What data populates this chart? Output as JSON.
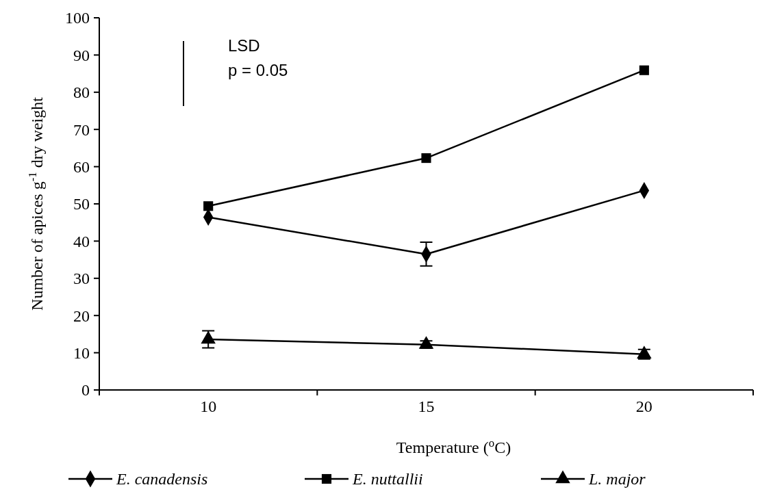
{
  "chart_data": {
    "type": "line",
    "xlabel": "Temperature ($^{o}$C)",
    "ylabel": "Number of apices g$^{-1}$ dry weight",
    "categories": [
      "10",
      "15",
      "20"
    ],
    "ylim": [
      0,
      100
    ],
    "yticks": [
      0,
      10,
      20,
      30,
      40,
      50,
      60,
      70,
      80,
      90,
      100
    ],
    "grid": false,
    "legend": "bottom",
    "line_style": "solid",
    "annotations": [
      "LSD",
      "p = 0.05"
    ],
    "series": [
      {
        "name": "E. canadensis",
        "color": "#000000",
        "marker": "diamond",
        "values": [
          46.4,
          36.5,
          53.6
        ],
        "errors": [
          null,
          3.2,
          null
        ]
      },
      {
        "name": "E. nuttallii",
        "color": "#000000",
        "marker": "square",
        "values": [
          49.4,
          62.3,
          85.9
        ],
        "errors": [
          null,
          null,
          null
        ]
      },
      {
        "name": "L. major",
        "color": "#000000",
        "marker": "triangle",
        "values": [
          13.6,
          12.2,
          9.6
        ],
        "errors": [
          2.3,
          1,
          1.3
        ]
      }
    ]
  }
}
